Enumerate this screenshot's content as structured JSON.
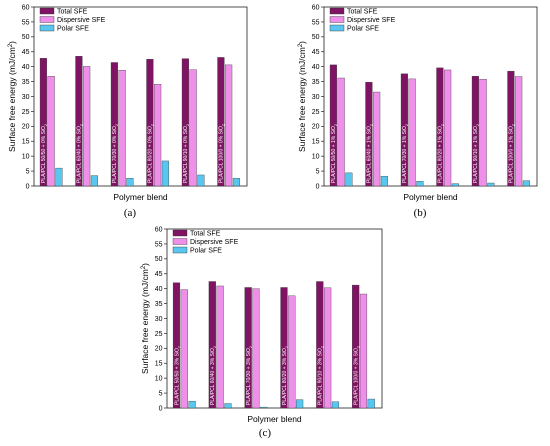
{
  "figure": {
    "panels": [
      "(a)",
      "(b)",
      "(c)"
    ]
  },
  "chart_data": [
    {
      "type": "bar",
      "panel_label": "(a)",
      "categories": [
        "PLA/PCL 50/50 + 0% SiO",
        "PLA/PCL 60/40 + 0% SiO",
        "PLA/PCL 70/30 + 0% SiO",
        "PLA/PCL 80/20 + 0% SiO",
        "PLA/PCL 90/10 + 0% SiO",
        "PLA/PCL 100/0 + 0% SiO"
      ],
      "category_subscript": "2",
      "series": [
        {
          "name": "Total SFE",
          "values": [
            42.8,
            43.5,
            41.4,
            42.5,
            42.7,
            43.1
          ]
        },
        {
          "name": "Dispersive SFE",
          "values": [
            36.8,
            40.1,
            38.8,
            34.1,
            39.0,
            40.6
          ]
        },
        {
          "name": "Polar SFE",
          "values": [
            6.0,
            3.5,
            2.6,
            8.4,
            3.7,
            2.6
          ]
        }
      ],
      "xlabel": "Polymer blend",
      "ylabel": "Surface free energy (mJ/cm",
      "ylabel_superscript": "2",
      "ylabel_close": ")",
      "ylim": [
        0,
        60
      ],
      "yticks": [
        0,
        5,
        10,
        15,
        20,
        25,
        30,
        35,
        40,
        45,
        50,
        55,
        60
      ],
      "legend": "top-left"
    },
    {
      "type": "bar",
      "panel_label": "(b)",
      "categories": [
        "PLA/PCL 50/50 + 1% SiO",
        "PLA/PCL 60/40 + 1% SiO",
        "PLA/PCL 70/30 + 1% SiO",
        "PLA/PCL 80/20 + 1% SiO",
        "PLA/PCL 90/10 + 1% SiO",
        "PLA/PCL 100/0 + 1% SiO"
      ],
      "category_subscript": "2",
      "series": [
        {
          "name": "Total SFE",
          "values": [
            40.6,
            34.8,
            37.6,
            39.6,
            36.8,
            38.5
          ]
        },
        {
          "name": "Dispersive SFE",
          "values": [
            36.2,
            31.5,
            35.9,
            38.9,
            35.8,
            36.7
          ]
        },
        {
          "name": "Polar SFE",
          "values": [
            4.4,
            3.3,
            1.6,
            0.8,
            1.0,
            1.8
          ]
        }
      ],
      "xlabel": "Polymer blend",
      "ylabel": "Surface free energy (mJ/cm",
      "ylabel_superscript": "2",
      "ylabel_close": ")",
      "ylim": [
        0,
        60
      ],
      "yticks": [
        0,
        5,
        10,
        15,
        20,
        25,
        30,
        35,
        40,
        45,
        50,
        55,
        60
      ],
      "legend": "top-left"
    },
    {
      "type": "bar",
      "panel_label": "(c)",
      "categories": [
        "PLA/PCL 50/50 + 3% SiO",
        "PLA/PCL 60/40 + 3% SiO",
        "PLA/PCL 70/30 + 3% SiO",
        "PLA/PCL 80/20 + 3% SiO",
        "PLA/PCL 90/10 + 3% SiO",
        "PLA/PCL 100/0 + 3% SiO"
      ],
      "category_subscript": "2",
      "series": [
        {
          "name": "Total SFE",
          "values": [
            42.0,
            42.4,
            40.4,
            40.4,
            42.4,
            41.2
          ]
        },
        {
          "name": "Dispersive SFE",
          "values": [
            39.7,
            40.9,
            40.0,
            37.6,
            40.3,
            38.2
          ]
        },
        {
          "name": "Polar SFE",
          "values": [
            2.3,
            1.5,
            0.3,
            2.8,
            2.1,
            3.0
          ]
        }
      ],
      "xlabel": "Polymer blend",
      "ylabel": "Surface free energy (mJ/cm",
      "ylabel_superscript": "2",
      "ylabel_close": ")",
      "ylim": [
        0,
        60
      ],
      "yticks": [
        0,
        5,
        10,
        15,
        20,
        25,
        30,
        35,
        40,
        45,
        50,
        55,
        60
      ],
      "legend": "top-left"
    }
  ],
  "colors": {
    "total": "#7e1463",
    "dispersive": "#ee8fea",
    "polar": "#58c6ef",
    "frame": "#222222"
  }
}
